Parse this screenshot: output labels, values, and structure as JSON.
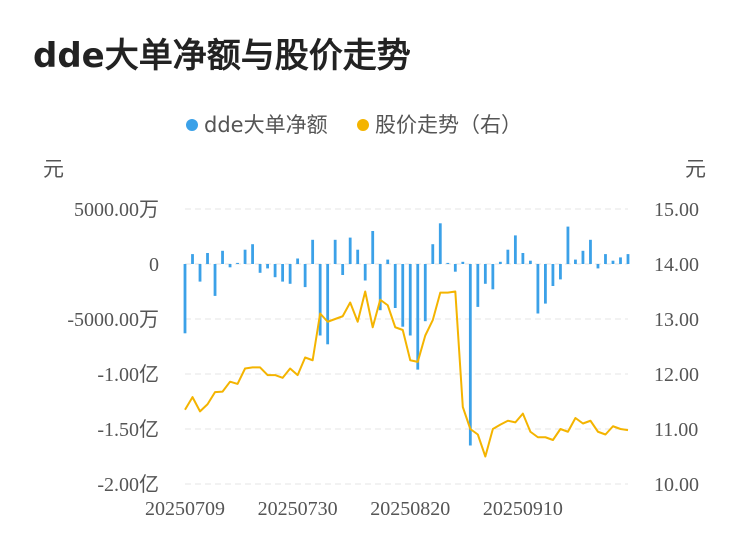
{
  "title": "dde大单净额与股价走势",
  "chart_data": {
    "type": "bar+line",
    "legend": [
      {
        "name": "dde大单净额",
        "color": "#3ba1e8"
      },
      {
        "name": "股价走势（右）",
        "color": "#f4b400"
      }
    ],
    "left_unit": "元",
    "right_unit": "元",
    "left_ticks": [
      "5000.00万",
      "0",
      "-5000.00万",
      "-1.00亿",
      "-1.50亿",
      "-2.00亿"
    ],
    "right_ticks": [
      "15.00",
      "14.00",
      "13.00",
      "12.00",
      "11.00",
      "10.00"
    ],
    "left_axis_range_yuan": [
      -200000000,
      50000000
    ],
    "right_axis_range": [
      10.0,
      15.0
    ],
    "x_tick_labels": [
      "20250709",
      "20250730",
      "20250820",
      "20250910"
    ],
    "grid": "dashed horizontal",
    "legend_position": "top-center",
    "series": [
      {
        "name": "dde大单净额",
        "type": "bar",
        "axis": "left",
        "unit": "万元",
        "values": [
          -6300,
          900,
          -1600,
          1000,
          -2900,
          1200,
          -300,
          100,
          1300,
          1800,
          -800,
          -400,
          -1200,
          -1600,
          -1800,
          500,
          -2100,
          2200,
          -6500,
          -7300,
          2200,
          -1000,
          2400,
          1300,
          -1500,
          3000,
          -4200,
          400,
          -4000,
          -5700,
          -6500,
          -9600,
          -5200,
          1800,
          3700,
          100,
          -700,
          200,
          -16500,
          -3900,
          -1800,
          -2300,
          200,
          1300,
          2600,
          1000,
          300,
          -4500,
          -3600,
          -2000,
          -1400,
          3400,
          400,
          1200,
          2200,
          -400,
          900,
          300,
          600,
          900
        ]
      },
      {
        "name": "股价走势（右）",
        "type": "line",
        "axis": "right",
        "values": [
          11.35,
          11.58,
          11.32,
          11.45,
          11.67,
          11.68,
          11.86,
          11.82,
          12.1,
          12.12,
          12.12,
          11.98,
          11.98,
          11.93,
          12.1,
          11.98,
          12.3,
          12.25,
          13.1,
          12.95,
          13.0,
          13.05,
          13.3,
          12.95,
          13.5,
          12.85,
          13.35,
          13.25,
          12.85,
          12.8,
          12.25,
          12.22,
          12.7,
          12.98,
          13.48,
          13.48,
          13.5,
          11.4,
          11.0,
          10.9,
          10.5,
          11.0,
          11.08,
          11.15,
          11.12,
          11.28,
          10.95,
          10.85,
          10.85,
          10.8,
          11.0,
          10.95,
          11.2,
          11.1,
          11.15,
          10.95,
          10.9,
          11.05,
          11.0,
          10.98
        ]
      }
    ]
  }
}
